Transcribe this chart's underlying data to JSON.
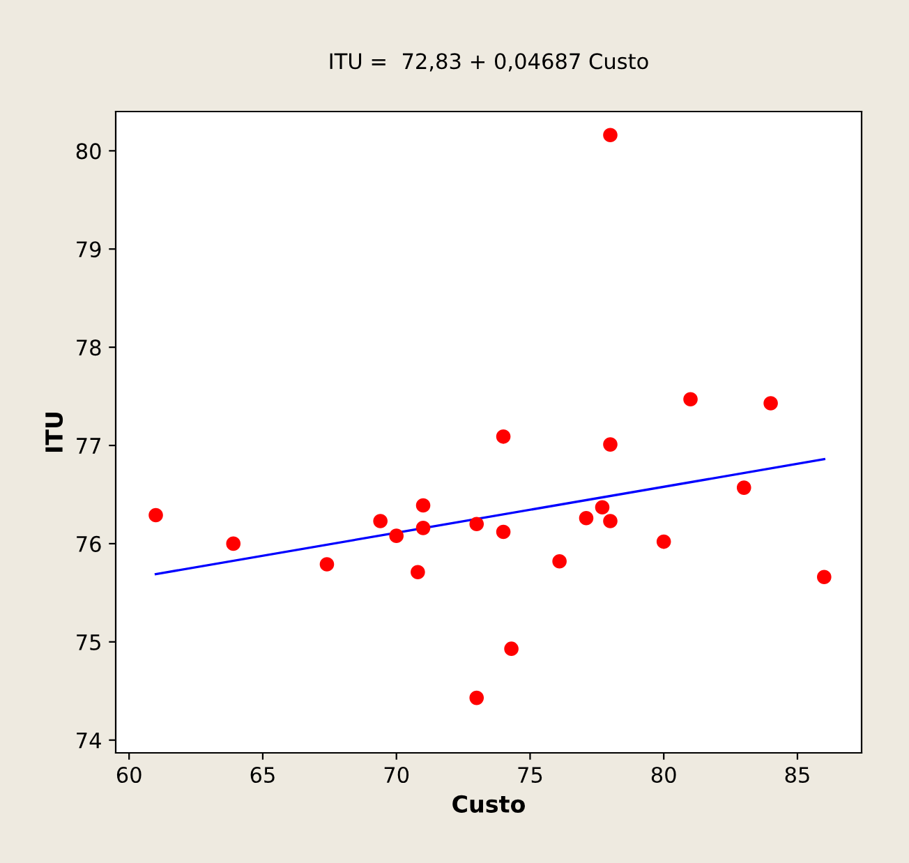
{
  "chart_data": {
    "type": "scatter",
    "title": "ITU =  72,83 + 0,04687 Custo",
    "xlabel": "Custo",
    "ylabel": "ITU",
    "xlim": [
      59.5,
      87.4
    ],
    "ylim": [
      73.87,
      80.4
    ],
    "xticks": [
      60,
      65,
      70,
      75,
      80,
      85
    ],
    "yticks": [
      74,
      75,
      76,
      77,
      78,
      79,
      80
    ],
    "grid": false,
    "legend": false,
    "marker": "circle",
    "series": [
      {
        "color": "#ff0000",
        "x": [
          61.0,
          63.9,
          67.4,
          69.4,
          70.0,
          71.0,
          71.0,
          70.8,
          73.0,
          73.0,
          74.0,
          74.0,
          74.3,
          76.1,
          77.1,
          77.7,
          78.0,
          78.0,
          78.0,
          80.0,
          81.0,
          83.0,
          84.0,
          86.0
        ],
        "values": [
          76.29,
          76.0,
          75.79,
          76.23,
          76.08,
          76.39,
          76.16,
          75.71,
          76.2,
          74.43,
          77.09,
          76.12,
          74.93,
          75.82,
          76.26,
          76.37,
          77.01,
          76.23,
          80.16,
          76.02,
          77.47,
          76.57,
          77.43,
          75.66
        ]
      },
      {
        "type": "line",
        "color": "#0000ff",
        "marker": "none",
        "x": [
          61,
          86
        ],
        "values": [
          75.69,
          76.86
        ]
      }
    ]
  }
}
